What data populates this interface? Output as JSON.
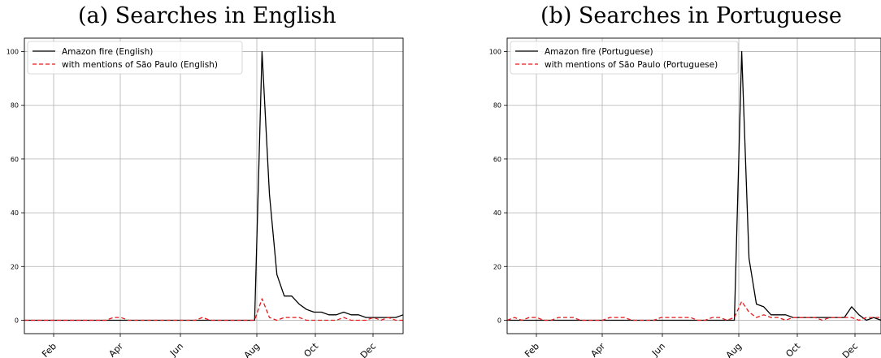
{
  "chart_data": [
    {
      "type": "line",
      "title": "(a) Searches in English",
      "xlabel": "",
      "ylabel": "",
      "x_ticks": [
        "Feb",
        "Apr",
        "Jun",
        "Aug",
        "Oct",
        "Dec"
      ],
      "y_ticks": [
        0,
        20,
        40,
        60,
        80,
        100
      ],
      "ylim": [
        -5,
        105
      ],
      "grid": true,
      "legend": "top-left",
      "series": [
        {
          "name": "Amazon fire (English)",
          "color": "#000000",
          "style": "solid",
          "x": [
            0,
            1,
            2,
            3,
            4,
            5,
            6,
            7,
            8,
            9,
            10,
            11,
            12,
            13,
            14,
            15,
            16,
            17,
            18,
            19,
            20,
            21,
            22,
            23,
            24,
            25,
            26,
            27,
            28,
            29,
            30,
            31,
            32,
            33,
            34,
            35,
            36,
            37,
            38,
            39,
            40,
            41,
            42,
            43,
            44,
            45,
            46,
            47,
            48,
            49,
            50,
            51
          ],
          "values": [
            0,
            0,
            0,
            0,
            0,
            0,
            0,
            0,
            0,
            0,
            0,
            0,
            0,
            0,
            0,
            0,
            0,
            0,
            0,
            0,
            0,
            0,
            0,
            0,
            0,
            0,
            0,
            0,
            0,
            0,
            0,
            0,
            100,
            47,
            17,
            9,
            9,
            6,
            4,
            3,
            3,
            2,
            2,
            3,
            2,
            2,
            1,
            1,
            1,
            1,
            1,
            2
          ]
        },
        {
          "name": "with mentions of São Paulo (English)",
          "color": "#e31a1c",
          "style": "dashed",
          "x": [
            0,
            1,
            2,
            3,
            4,
            5,
            6,
            7,
            8,
            9,
            10,
            11,
            12,
            13,
            14,
            15,
            16,
            17,
            18,
            19,
            20,
            21,
            22,
            23,
            24,
            25,
            26,
            27,
            28,
            29,
            30,
            31,
            32,
            33,
            34,
            35,
            36,
            37,
            38,
            39,
            40,
            41,
            42,
            43,
            44,
            45,
            46,
            47,
            48,
            49,
            50,
            51
          ],
          "values": [
            0,
            0,
            0,
            0,
            0,
            0,
            0,
            0,
            0,
            0,
            0,
            0,
            1,
            1,
            0,
            0,
            0,
            0,
            0,
            0,
            0,
            0,
            0,
            0,
            1,
            0,
            0,
            0,
            0,
            0,
            0,
            0,
            8,
            1,
            0,
            1,
            1,
            1,
            0,
            0,
            0,
            0,
            0,
            1,
            0,
            0,
            0,
            1,
            0,
            1,
            0,
            0
          ]
        }
      ]
    },
    {
      "type": "line",
      "title": "(b) Searches in Portuguese",
      "xlabel": "",
      "ylabel": "",
      "x_ticks": [
        "Feb",
        "Apr",
        "Jun",
        "Aug",
        "Oct",
        "Dec"
      ],
      "y_ticks": [
        0,
        20,
        40,
        60,
        80,
        100
      ],
      "ylim": [
        -5,
        105
      ],
      "grid": true,
      "legend": "top-left",
      "series": [
        {
          "name": "Amazon fire (Portuguese)",
          "color": "#000000",
          "style": "solid",
          "x": [
            0,
            1,
            2,
            3,
            4,
            5,
            6,
            7,
            8,
            9,
            10,
            11,
            12,
            13,
            14,
            15,
            16,
            17,
            18,
            19,
            20,
            21,
            22,
            23,
            24,
            25,
            26,
            27,
            28,
            29,
            30,
            31,
            32,
            33,
            34,
            35,
            36,
            37,
            38,
            39,
            40,
            41,
            42,
            43,
            44,
            45,
            46,
            47,
            48,
            49,
            50,
            51
          ],
          "values": [
            0,
            0,
            0,
            0,
            0,
            0,
            0,
            0,
            0,
            0,
            0,
            0,
            0,
            0,
            0,
            0,
            0,
            0,
            0,
            0,
            0,
            0,
            0,
            0,
            0,
            0,
            0,
            0,
            0,
            0,
            0,
            0,
            100,
            23,
            6,
            5,
            2,
            2,
            2,
            1,
            1,
            1,
            1,
            1,
            1,
            1,
            1,
            5,
            2,
            0,
            1,
            0
          ]
        },
        {
          "name": "with mentions of São Paulo (Portuguese)",
          "color": "#e31a1c",
          "style": "dashed",
          "x": [
            0,
            1,
            2,
            3,
            4,
            5,
            6,
            7,
            8,
            9,
            10,
            11,
            12,
            13,
            14,
            15,
            16,
            17,
            18,
            19,
            20,
            21,
            22,
            23,
            24,
            25,
            26,
            27,
            28,
            29,
            30,
            31,
            32,
            33,
            34,
            35,
            36,
            37,
            38,
            39,
            40,
            41,
            42,
            43,
            44,
            45,
            46,
            47,
            48,
            49,
            50,
            51
          ],
          "values": [
            0,
            1,
            0,
            1,
            1,
            0,
            0,
            1,
            1,
            1,
            0,
            0,
            0,
            0,
            1,
            1,
            1,
            0,
            0,
            0,
            0,
            1,
            1,
            1,
            1,
            1,
            0,
            0,
            1,
            1,
            0,
            1,
            7,
            3,
            1,
            2,
            1,
            1,
            0,
            1,
            1,
            1,
            1,
            0,
            1,
            1,
            1,
            1,
            0,
            1,
            1,
            1
          ]
        }
      ]
    }
  ]
}
